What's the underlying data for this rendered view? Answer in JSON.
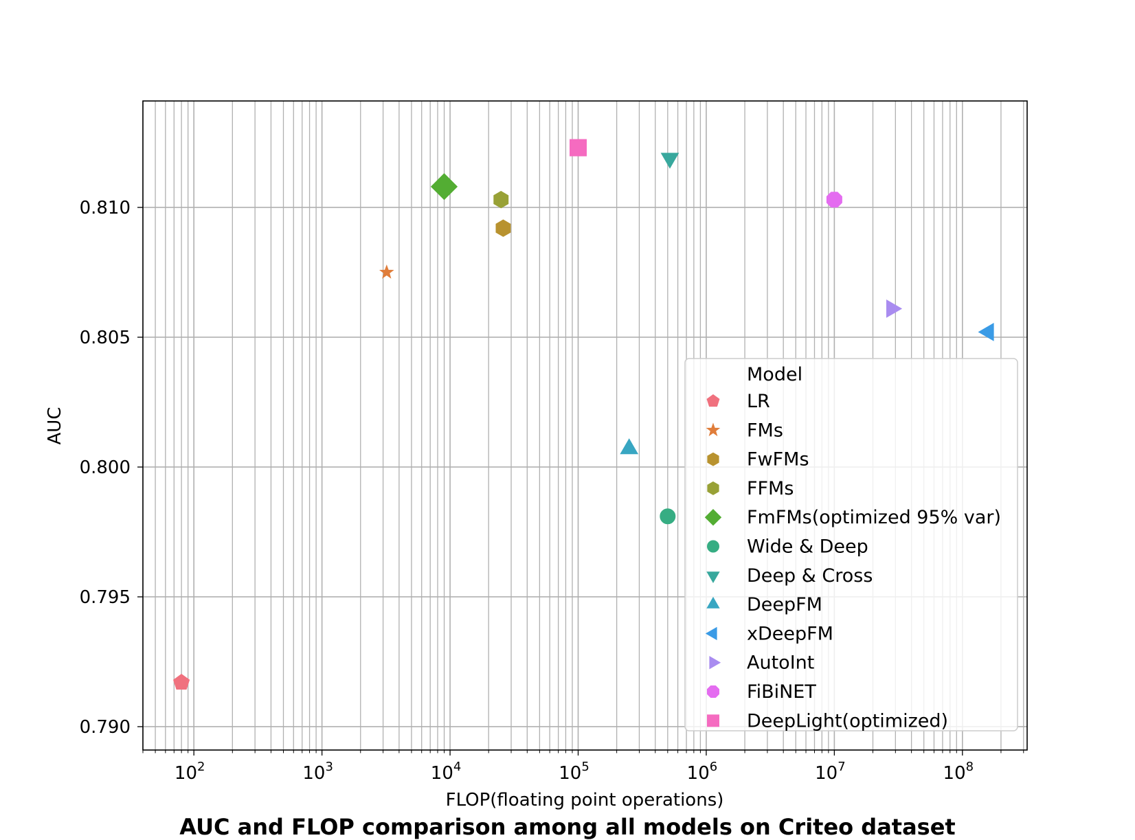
{
  "chart_data": {
    "type": "scatter",
    "title": "AUC and FLOP comparison among all models on Criteo dataset",
    "xlabel": "FLOP(floating point operations)",
    "ylabel": "AUC",
    "xscale": "log",
    "xlim": [
      40,
      320000000
    ],
    "ylim": [
      0.7891,
      0.8141
    ],
    "x_ticks": [
      {
        "base": "10",
        "exp": "2"
      },
      {
        "base": "10",
        "exp": "3"
      },
      {
        "base": "10",
        "exp": "4"
      },
      {
        "base": "10",
        "exp": "5"
      },
      {
        "base": "10",
        "exp": "6"
      },
      {
        "base": "10",
        "exp": "7"
      },
      {
        "base": "10",
        "exp": "8"
      }
    ],
    "y_ticks": [
      "0.790",
      "0.795",
      "0.800",
      "0.805",
      "0.810"
    ],
    "grid": true,
    "legend": {
      "title": "Model",
      "position": "lower right"
    },
    "series": [
      {
        "name": "LR",
        "marker": "pentagon",
        "color": "#f0717e",
        "points": [
          [
            80,
            0.7917
          ]
        ]
      },
      {
        "name": "FMs",
        "marker": "star",
        "color": "#e07d3a",
        "points": [
          [
            3200,
            0.8075
          ]
        ]
      },
      {
        "name": "FwFMs",
        "marker": "hexagon",
        "color": "#b8922f",
        "points": [
          [
            26000,
            0.8092
          ]
        ]
      },
      {
        "name": "FFMs",
        "marker": "hexagon",
        "color": "#98a136",
        "points": [
          [
            25000,
            0.8103
          ]
        ]
      },
      {
        "name": "FmFMs(optimized 95% var)",
        "marker": "diamond",
        "color": "#53ad33",
        "points": [
          [
            9000,
            0.8108
          ]
        ]
      },
      {
        "name": "Wide & Deep",
        "marker": "circle",
        "color": "#36ad83",
        "points": [
          [
            500000,
            0.7981
          ]
        ]
      },
      {
        "name": "Deep & Cross",
        "marker": "triangle-down",
        "color": "#38a89d",
        "points": [
          [
            520000,
            0.8119
          ]
        ]
      },
      {
        "name": "DeepFM",
        "marker": "triangle-up",
        "color": "#38a6c2",
        "points": [
          [
            250000,
            0.8007
          ]
        ]
      },
      {
        "name": "xDeepFM",
        "marker": "triangle-left",
        "color": "#3a9be6",
        "points": [
          [
            160000000,
            0.8052
          ]
        ]
      },
      {
        "name": "AutoInt",
        "marker": "triangle-right",
        "color": "#a98cf0",
        "points": [
          [
            28000000,
            0.8061
          ]
        ]
      },
      {
        "name": "FiBiNET",
        "marker": "octagon",
        "color": "#e46cf0",
        "points": [
          [
            10000000,
            0.8103
          ]
        ]
      },
      {
        "name": "DeepLight(optimized)",
        "marker": "square",
        "color": "#f56bc0",
        "points": [
          [
            100000,
            0.8123
          ]
        ]
      }
    ]
  }
}
